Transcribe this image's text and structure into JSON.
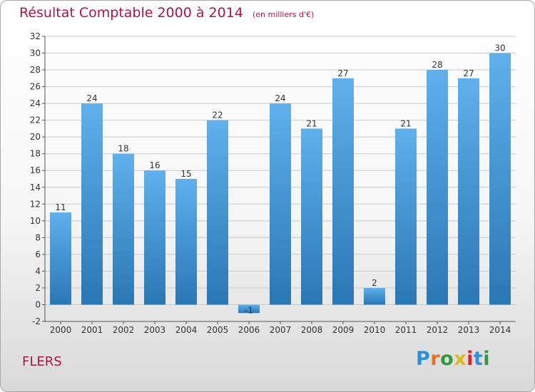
{
  "title": "Résultat Comptable 2000 à 2014",
  "subtitle": "(en milliers d'€)",
  "town": "FLERS",
  "brand": {
    "letters": [
      "P",
      "r",
      "o",
      "x",
      "i",
      "t",
      "i"
    ],
    "colors": [
      "#2f8fd8",
      "#e8731d",
      "#2f9a3a",
      "#e2b81a",
      "#d7262f",
      "#2f8fd8",
      "#2f9a3a"
    ]
  },
  "colors": {
    "bar_light": "#5fb0ec",
    "bar_dark": "#2a77b6",
    "grid": "#c9c9c9",
    "text": "#333333",
    "accent": "#a8174a"
  },
  "chart_data": {
    "type": "bar",
    "title": "Résultat Comptable 2000 à 2014",
    "ylabel": "en milliers d'€",
    "xlabel": "",
    "categories": [
      "2000",
      "2001",
      "2002",
      "2003",
      "2004",
      "2005",
      "2006",
      "2007",
      "2008",
      "2009",
      "2010",
      "2011",
      "2012",
      "2013",
      "2014"
    ],
    "values": [
      11,
      24,
      18,
      16,
      15,
      22,
      -1,
      24,
      21,
      27,
      2,
      21,
      28,
      27,
      30
    ],
    "ylim": [
      -2,
      32
    ],
    "yticks": [
      -2,
      0,
      2,
      4,
      6,
      8,
      10,
      12,
      14,
      16,
      18,
      20,
      22,
      24,
      26,
      28,
      30,
      32
    ],
    "grid": "horizontal"
  }
}
